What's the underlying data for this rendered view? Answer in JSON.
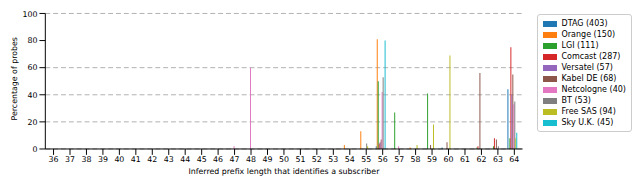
{
  "chart_data": {
    "type": "bar",
    "x_label": "Inferred prefix length that identifies a subscriber",
    "y_label": "Percentage of probes",
    "categories": [
      36,
      37,
      38,
      39,
      40,
      41,
      42,
      43,
      44,
      45,
      46,
      47,
      48,
      49,
      50,
      51,
      52,
      53,
      54,
      55,
      56,
      57,
      58,
      59,
      60,
      61,
      62,
      63,
      64
    ],
    "series": [
      {
        "name": "DTAG (403)",
        "color": "#1f77b4",
        "values": [
          0,
          0,
          0,
          0,
          0,
          0,
          0,
          0,
          0,
          0,
          0,
          0,
          0,
          0,
          0,
          0,
          0,
          0,
          0,
          0,
          2,
          0,
          0,
          0,
          1,
          0,
          0,
          0,
          44
        ]
      },
      {
        "name": "Orange (150)",
        "color": "#ff7f0e",
        "values": [
          0,
          0,
          0,
          0,
          0,
          0,
          0,
          0,
          0,
          0,
          0,
          0,
          0,
          0,
          0,
          0,
          0,
          0,
          3,
          13,
          81,
          0,
          1,
          0,
          0,
          0,
          0,
          0,
          0
        ]
      },
      {
        "name": "LGI (111)",
        "color": "#2ca02c",
        "values": [
          0,
          0,
          0,
          0,
          0,
          0,
          0,
          0,
          0,
          0,
          0,
          0,
          0,
          0,
          0,
          0,
          0,
          0,
          0,
          0,
          50,
          27,
          0,
          41,
          0,
          0,
          1,
          2,
          8
        ]
      },
      {
        "name": "Comcast (287)",
        "color": "#d62728",
        "values": [
          0,
          0,
          0,
          0,
          0,
          0,
          0,
          0,
          0,
          0,
          0,
          0,
          0,
          0,
          0,
          0,
          0,
          0,
          0,
          0,
          4,
          0,
          0,
          0,
          0,
          0,
          2,
          8,
          75
        ]
      },
      {
        "name": "Versatel (57)",
        "color": "#9467bd",
        "values": [
          0,
          0,
          0,
          0,
          0,
          0,
          0,
          0,
          0,
          0,
          0,
          0,
          0,
          0,
          0,
          0,
          0,
          0,
          0,
          0,
          5,
          0,
          0,
          0,
          0,
          0,
          0,
          0,
          40
        ]
      },
      {
        "name": "Kabel DE (68)",
        "color": "#8c564b",
        "values": [
          0,
          0,
          0,
          0,
          0,
          0,
          0,
          0,
          0,
          0,
          0,
          0,
          0,
          0,
          0,
          0,
          0,
          0,
          0,
          0,
          7,
          0,
          0,
          3,
          5,
          0,
          56,
          7,
          55
        ]
      },
      {
        "name": "Netcologne (40)",
        "color": "#e377c2",
        "values": [
          0,
          0,
          0,
          0,
          0,
          0,
          0,
          0,
          0,
          0,
          0,
          2,
          60,
          0,
          0,
          0,
          0,
          0,
          0,
          0,
          42,
          2,
          0,
          0,
          0,
          0,
          0,
          0,
          33
        ]
      },
      {
        "name": "BT (53)",
        "color": "#7f7f7f",
        "values": [
          0,
          0,
          0,
          0,
          0,
          0,
          0,
          0,
          0,
          0,
          0,
          0,
          0,
          0,
          0,
          0,
          0,
          0,
          0,
          4,
          53,
          0,
          0,
          0,
          0,
          0,
          0,
          2,
          35
        ]
      },
      {
        "name": "Free SAS (94)",
        "color": "#bcbd22",
        "values": [
          0,
          0,
          0,
          0,
          0,
          0,
          0,
          0,
          0,
          0,
          0,
          0,
          0,
          0,
          0,
          0,
          0,
          0,
          0,
          2,
          0,
          0,
          3,
          18,
          69,
          0,
          0,
          0,
          8
        ]
      },
      {
        "name": "Sky U.K. (45)",
        "color": "#17becf",
        "values": [
          0,
          0,
          0,
          0,
          0,
          0,
          0,
          0,
          0,
          0,
          0,
          0,
          0,
          0,
          0,
          0,
          0,
          0,
          0,
          0,
          80,
          0,
          0,
          0,
          0,
          0,
          0,
          0,
          12
        ]
      }
    ],
    "ylim": [
      0,
      100
    ],
    "yticks": [
      0,
      20,
      40,
      60,
      80,
      100
    ],
    "grid": true,
    "legend": "right"
  }
}
